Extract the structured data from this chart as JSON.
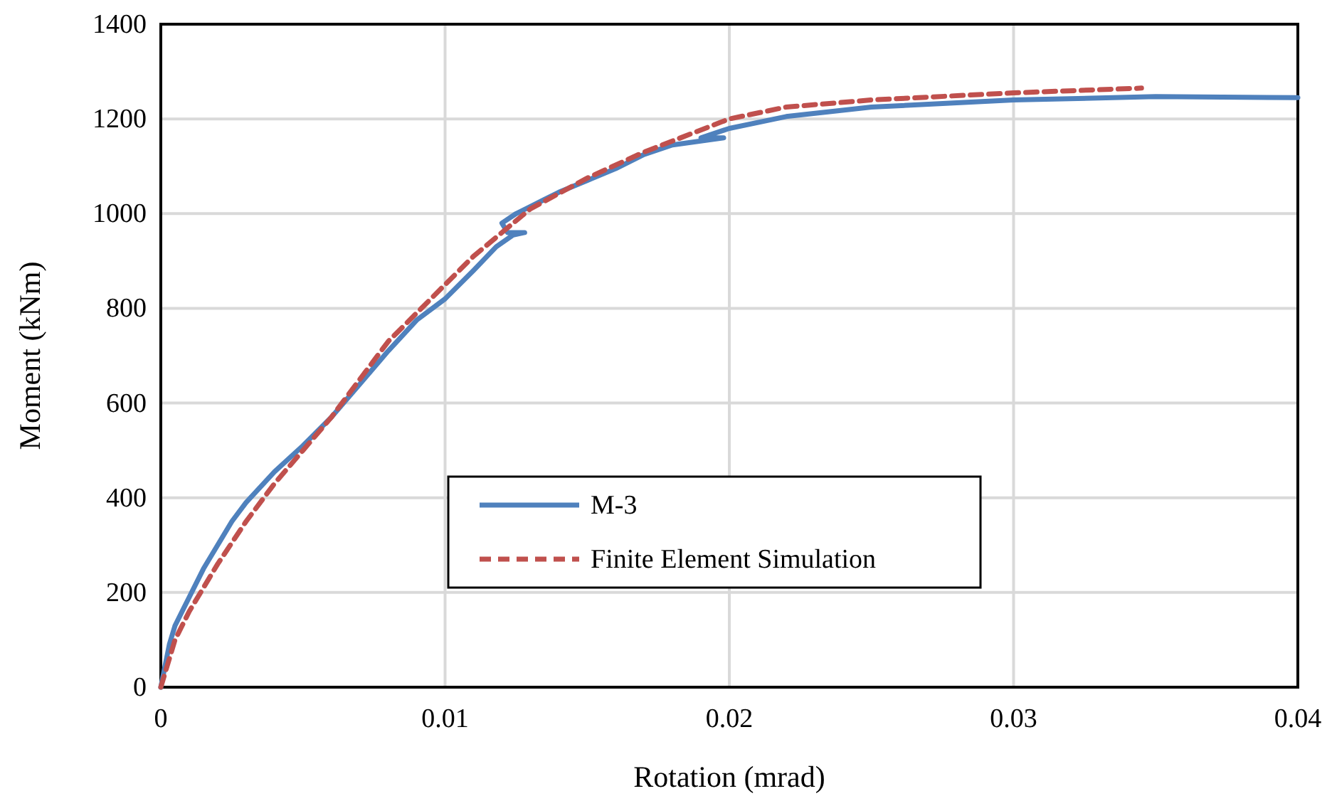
{
  "chart_data": {
    "type": "line",
    "xlabel": "Rotation (mrad)",
    "ylabel": "Moment (kNm)",
    "xlim": [
      0,
      0.04
    ],
    "xticks": [
      0,
      0.01,
      0.02,
      0.03,
      0.04
    ],
    "ylim": [
      0,
      1400
    ],
    "yticks": [
      0,
      200,
      400,
      600,
      800,
      1000,
      1200,
      1400
    ],
    "grid": true,
    "legend": "center",
    "series": [
      {
        "name": "M-3",
        "color": "#4f81bd",
        "line_style": "solid",
        "x": [
          0,
          0.0003,
          0.0005,
          0.001,
          0.0015,
          0.002,
          0.0025,
          0.003,
          0.004,
          0.005,
          0.006,
          0.007,
          0.008,
          0.009,
          0.01,
          0.011,
          0.0118,
          0.0124,
          0.0128,
          0.0122,
          0.012,
          0.0125,
          0.013,
          0.014,
          0.015,
          0.016,
          0.017,
          0.018,
          0.0198,
          0.019,
          0.02,
          0.022,
          0.025,
          0.03,
          0.035,
          0.04
        ],
        "values": [
          0,
          90,
          130,
          190,
          250,
          300,
          350,
          390,
          455,
          510,
          570,
          640,
          710,
          775,
          820,
          880,
          930,
          955,
          960,
          960,
          980,
          1000,
          1015,
          1045,
          1070,
          1095,
          1125,
          1145,
          1160,
          1160,
          1180,
          1205,
          1225,
          1240,
          1247,
          1245
        ]
      },
      {
        "name": "Finite Element Simulation",
        "color": "#c0504d",
        "line_style": "dashed",
        "x": [
          0,
          0.0005,
          0.001,
          0.002,
          0.003,
          0.004,
          0.005,
          0.006,
          0.007,
          0.008,
          0.009,
          0.01,
          0.011,
          0.012,
          0.013,
          0.015,
          0.017,
          0.02,
          0.022,
          0.025,
          0.03,
          0.0345
        ],
        "values": [
          0,
          100,
          160,
          260,
          350,
          430,
          500,
          570,
          650,
          730,
          790,
          850,
          910,
          960,
          1010,
          1075,
          1130,
          1200,
          1225,
          1240,
          1255,
          1265
        ]
      }
    ]
  }
}
